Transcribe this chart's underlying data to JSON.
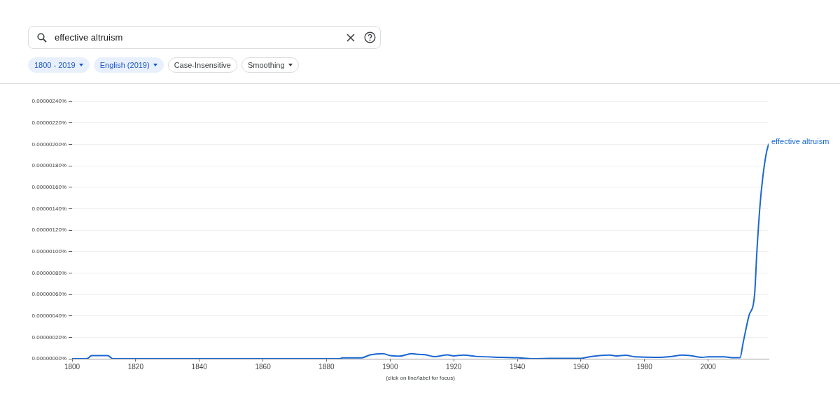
{
  "chart_data": {
    "type": "line",
    "x": [
      1800,
      1804.6,
      1806.2,
      1811.2,
      1812.8,
      1884,
      1885,
      1891,
      1893.7,
      1897.7,
      1900,
      1903,
      1906.7,
      1909,
      1911,
      1914,
      1918,
      1920,
      1923,
      1927,
      1935,
      1940,
      1945,
      1950,
      1960,
      1963,
      1969,
      1971,
      1974,
      1977,
      1985,
      1988,
      1992,
      1995,
      1998,
      2000,
      2005,
      2008,
      2010,
      2011,
      2012.8,
      2014.6,
      2015.3,
      2016.3,
      2017.2,
      2018.3,
      2019
    ],
    "series": [
      {
        "name": "effective altruism",
        "color": "#1967d2",
        "values": [
          0,
          0,
          2.9e-08,
          2.9e-08,
          0,
          0,
          8e-09,
          8e-09,
          3.6e-08,
          4.8e-08,
          2.9e-08,
          2.4e-08,
          4.8e-08,
          4e-08,
          3.8e-08,
          1.9e-08,
          3.6e-08,
          2.6e-08,
          3.5e-08,
          2.2e-08,
          1.3e-08,
          9e-09,
          0,
          4e-09,
          4e-09,
          2e-08,
          3.5e-08,
          2.6e-08,
          3.3e-08,
          1.8e-08,
          1.3e-08,
          2e-08,
          3.5e-08,
          2.6e-08,
          1.3e-08,
          1.8e-08,
          1.8e-08,
          9e-09,
          9e-09,
          1.5e-07,
          4e-07,
          6e-07,
          9.9e-07,
          1.43e-06,
          1.7e-06,
          1.92e-06,
          2e-06
        ]
      }
    ],
    "xlim": [
      1800,
      2019
    ],
    "xticks": [
      1800,
      1820,
      1840,
      1860,
      1880,
      1900,
      1920,
      1940,
      1960,
      1980,
      2000
    ],
    "ylim": [
      0,
      2.4e-06
    ],
    "yticks": [
      {
        "value": 0,
        "label": "0.00000000%"
      },
      {
        "value": 2e-07,
        "label": "0.00000020%"
      },
      {
        "value": 4e-07,
        "label": "0.00000040%"
      },
      {
        "value": 6e-07,
        "label": "0.00000060%"
      },
      {
        "value": 8e-07,
        "label": "0.00000080%"
      },
      {
        "value": 1e-06,
        "label": "0.00000100%"
      },
      {
        "value": 1.2e-06,
        "label": "0.00000120%"
      },
      {
        "value": 1.4e-06,
        "label": "0.00000140%"
      },
      {
        "value": 1.6e-06,
        "label": "0.00000160%"
      },
      {
        "value": 1.8e-06,
        "label": "0.00000180%"
      },
      {
        "value": 2e-06,
        "label": "0.00000200%"
      },
      {
        "value": 2.2e-06,
        "label": "0.00000220%"
      },
      {
        "value": 2.4e-06,
        "label": "0.00000240%"
      }
    ],
    "grid": "y",
    "legend": false,
    "marker": "none",
    "line_style": "solid",
    "annotations": [
      "effective altruism",
      "1800 - 2019",
      "English (2019)",
      "Case-Insensitive",
      "Smoothing",
      "(click on line/label for focus)"
    ]
  }
}
